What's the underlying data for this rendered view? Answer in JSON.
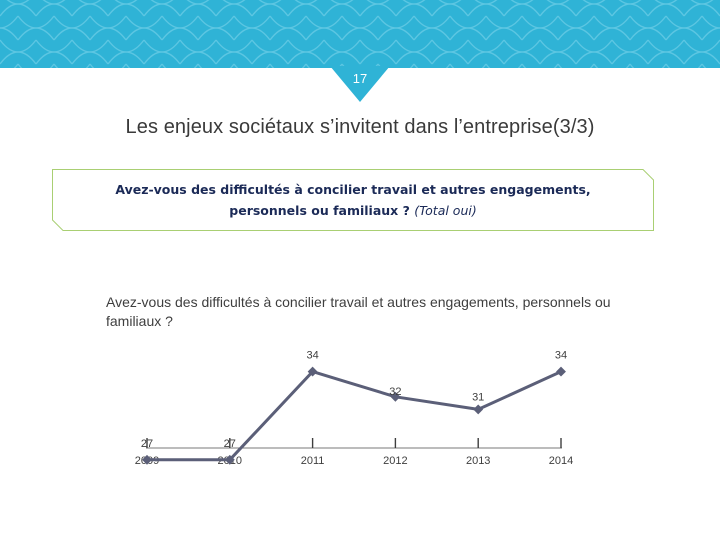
{
  "header": {
    "page_number": "17",
    "accent_color": "#2fb3d6"
  },
  "slide": {
    "title": "Les enjeux sociétaux s’invitent dans l’entreprise(3/3)"
  },
  "question_box": {
    "line1": "Avez-vous des difficultés à concilier travail et autres engagements,",
    "line2": "personnels ou familiaux ?",
    "total_note": "(Total oui)"
  },
  "chart_data": {
    "type": "line",
    "title": "Avez-vous des difficultés à concilier travail et autres engagements, personnels ou familiaux ?",
    "categories": [
      "2009",
      "2010",
      "2011",
      "2012",
      "2013",
      "2014"
    ],
    "series": [
      {
        "name": "Total oui",
        "values": [
          27,
          27,
          34,
          32,
          31,
          34
        ],
        "color": "#5b5f78"
      }
    ],
    "xlabel": "",
    "ylabel": "",
    "ylim": [
      20,
      40
    ],
    "grid": false,
    "legend": "none"
  }
}
